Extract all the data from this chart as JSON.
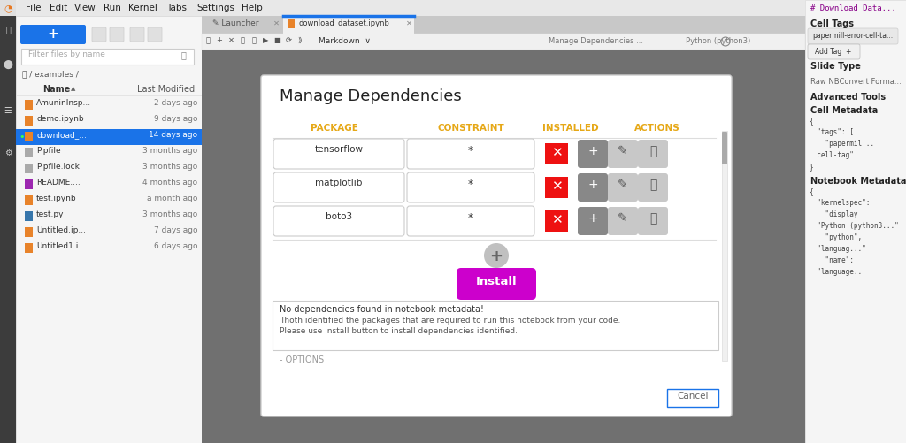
{
  "title": "Manage Dependencies",
  "packages": [
    "tensorflow",
    "matplotlib",
    "boto3"
  ],
  "constraint": "*",
  "header_package": "PACKAGE",
  "header_constraint": "CONSTRAINT",
  "header_installed": "INSTALLED",
  "header_actions": "ACTIONS",
  "header_color": "#e6a817",
  "message_line1": "No dependencies found in notebook metadata!",
  "message_line2": "Thoth identified the packages that are required to run this notebook from your code.",
  "message_line3": "Please use install button to install dependencies identified.",
  "install_btn_color": "#cc00cc",
  "install_btn_text": "Install",
  "cancel_btn_text": "Cancel",
  "red_x_color": "#ee1111",
  "dark_btn_color": "#888888",
  "light_btn_color": "#c8c8c8",
  "menu_items": [
    [
      "File",
      38
    ],
    [
      "Edit",
      66
    ],
    [
      "View",
      96
    ],
    [
      "Run",
      127
    ],
    [
      "Kernel",
      161
    ],
    [
      "Tabs",
      200
    ],
    [
      "Settings",
      244
    ],
    [
      "Help",
      285
    ]
  ],
  "files": [
    [
      "AmuninInsp...",
      "2 days ago",
      false,
      "notebook"
    ],
    [
      "demo.ipynb",
      "9 days ago",
      false,
      "notebook"
    ],
    [
      "download_...",
      "14 days ago",
      true,
      "notebook"
    ],
    [
      "Pipfile",
      "3 months ago",
      false,
      "file"
    ],
    [
      "Pipfile.lock",
      "3 months ago",
      false,
      "file"
    ],
    [
      "README....",
      "4 months ago",
      false,
      "readme"
    ],
    [
      "test.ipynb",
      "a month ago",
      false,
      "notebook"
    ],
    [
      "test.py",
      "3 months ago",
      false,
      "python"
    ],
    [
      "Untitled.ip...",
      "7 days ago",
      false,
      "notebook"
    ],
    [
      "Untitled1.i...",
      "6 days ago",
      false,
      "notebook"
    ]
  ]
}
